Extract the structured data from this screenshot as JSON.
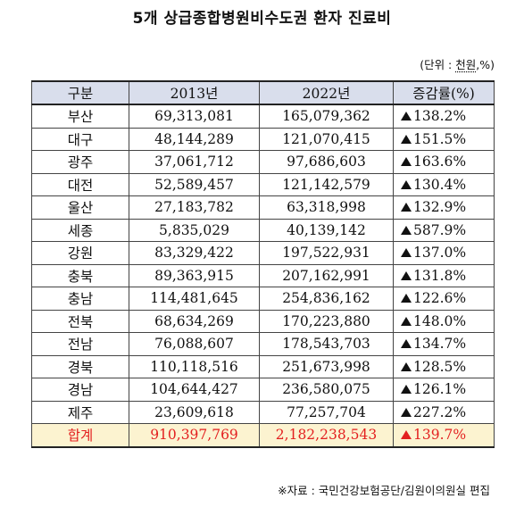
{
  "title": "5개 상급종합병원비수도권 환자 진료비",
  "unit": {
    "prefix": "(단위 : ",
    "text": "천원",
    "suffix": ",%)"
  },
  "table": {
    "headers": [
      "구분",
      "2013년",
      "2022년",
      "증감률(%)"
    ],
    "rows": [
      {
        "region": "부산",
        "y2013": "69,313,081",
        "y2022": "165,079,362",
        "rate": "138.2%"
      },
      {
        "region": "대구",
        "y2013": "48,144,289",
        "y2022": "121,070,415",
        "rate": "151.5%"
      },
      {
        "region": "광주",
        "y2013": "37,061,712",
        "y2022": "97,686,603",
        "rate": "163.6%"
      },
      {
        "region": "대전",
        "y2013": "52,589,457",
        "y2022": "121,142,579",
        "rate": "130.4%"
      },
      {
        "region": "울산",
        "y2013": "27,183,782",
        "y2022": "63,318,998",
        "rate": "132.9%"
      },
      {
        "region": "세종",
        "y2013": "5,835,029",
        "y2022": "40,139,142",
        "rate": "587.9%"
      },
      {
        "region": "강원",
        "y2013": "83,329,422",
        "y2022": "197,522,931",
        "rate": "137.0%"
      },
      {
        "region": "충북",
        "y2013": "89,363,915",
        "y2022": "207,162,991",
        "rate": "131.8%"
      },
      {
        "region": "충남",
        "y2013": "114,481,645",
        "y2022": "254,836,162",
        "rate": "122.6%"
      },
      {
        "region": "전북",
        "y2013": "68,634,269",
        "y2022": "170,223,880",
        "rate": "148.0%"
      },
      {
        "region": "전남",
        "y2013": "76,088,607",
        "y2022": "178,543,703",
        "rate": "134.7%"
      },
      {
        "region": "경북",
        "y2013": "110,118,516",
        "y2022": "251,673,998",
        "rate": "128.5%"
      },
      {
        "region": "경남",
        "y2013": "104,644,427",
        "y2022": "236,580,075",
        "rate": "126.1%"
      },
      {
        "region": "제주",
        "y2013": "23,609,618",
        "y2022": "77,257,704",
        "rate": "227.2%"
      }
    ],
    "total": {
      "region": "합계",
      "y2013": "910,397,769",
      "y2022": "2,182,238,543",
      "rate": "139.7%"
    }
  },
  "source": "※자료 : 국민건강보험공단/김원이의원실 편집",
  "colors": {
    "header_bg": "#d9deec",
    "total_bg": "#fcf3d0",
    "total_text": "#e32020"
  },
  "icons": {
    "increase": "up-triangle-icon"
  }
}
